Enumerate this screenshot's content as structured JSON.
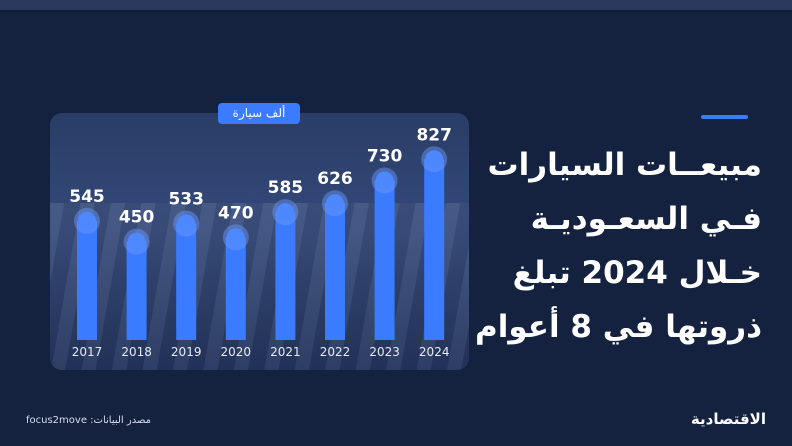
{
  "headline": {
    "line1": "مبيعــات السيارات",
    "line2": "فـي السعـوديـة",
    "line3": "خـلال 2024 تبلغ",
    "line4": "ذروتها في 8 أعوام"
  },
  "unit_label": "ألف سيارة",
  "source": "مصدر البيانات: focus2move",
  "logo": "الاقتصادية",
  "colors": {
    "background": "#14213f",
    "bar": "#3b7bff",
    "accent": "#3b7bff",
    "panel": "#2f4372"
  },
  "chart_data": {
    "type": "bar",
    "categories": [
      "2017",
      "2018",
      "2019",
      "2020",
      "2021",
      "2022",
      "2023",
      "2024"
    ],
    "values": [
      545,
      450,
      533,
      470,
      585,
      626,
      730,
      827
    ],
    "data_labels": [
      "545",
      "450",
      "533",
      "470",
      "585",
      "626",
      "730",
      "827"
    ],
    "unit": "ألف سيارة",
    "grid": false,
    "legend": "none"
  }
}
